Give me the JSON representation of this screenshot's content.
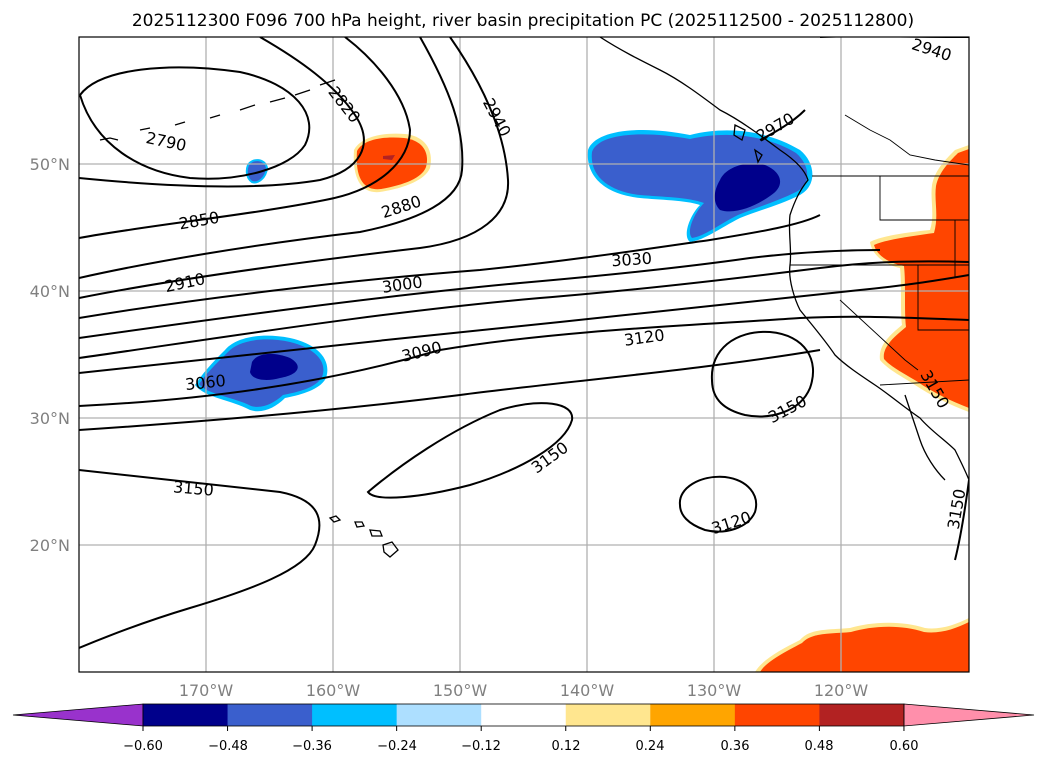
{
  "title": "2025112300 F096 700 hPa height, river basin precipitation PC (2025112500 - 2025112800)",
  "map": {
    "projection": "PlateCarree",
    "lon_range": [
      -180,
      -110
    ],
    "lat_range": [
      10,
      60
    ],
    "lat_ticks": [
      "50°N",
      "40°N",
      "30°N",
      "20°N"
    ],
    "lon_ticks": [
      "170°W",
      "160°W",
      "150°W",
      "140°W",
      "130°W",
      "120°W"
    ],
    "contour_labels": [
      "2790",
      "2820",
      "2850",
      "2880",
      "2910",
      "2940",
      "2940",
      "2970",
      "3000",
      "3030",
      "3060",
      "3090",
      "3120",
      "3120",
      "3150",
      "3150",
      "3150",
      "3150",
      "3150"
    ]
  },
  "colorbar": {
    "ticks": [
      "−0.60",
      "−0.48",
      "−0.36",
      "−0.24",
      "−0.12",
      "0.12",
      "0.24",
      "0.36",
      "0.48",
      "0.60"
    ],
    "colors": [
      "#9932CC",
      "#00008B",
      "#3A5FCD",
      "#00BFFF",
      "#ADDFFF",
      "#FFFFFF",
      "#FFE68F",
      "#FFA500",
      "#FF4500",
      "#B22222",
      "#FF8FAB"
    ]
  }
}
